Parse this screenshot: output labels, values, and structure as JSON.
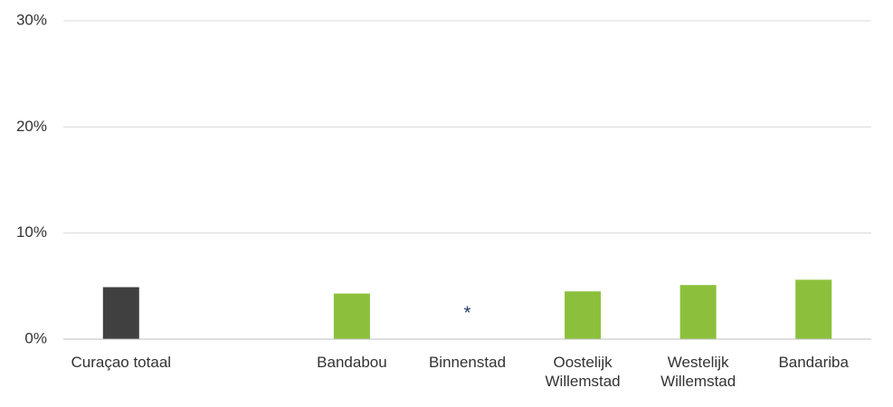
{
  "chart_data": {
    "type": "bar",
    "categories": [
      "Curaçao totaal",
      null,
      "Bandabou",
      "Binnenstad",
      "Oostelijk Willemstad",
      "Westelijk Willemstad",
      "Bandariba"
    ],
    "values": [
      4.9,
      null,
      4.3,
      null,
      4.5,
      5.1,
      5.6
    ],
    "value_labels": [
      null,
      null,
      null,
      "*",
      null,
      null,
      null
    ],
    "colors": [
      "#404040",
      null,
      "#8cc03c",
      null,
      "#8cc03c",
      "#8cc03c",
      "#8cc03c"
    ],
    "ylim": [
      0,
      30
    ],
    "yticks": [
      {
        "value": 0,
        "label": "0%"
      },
      {
        "value": 10,
        "label": "10%"
      },
      {
        "value": 20,
        "label": "20%"
      },
      {
        "value": 30,
        "label": "30%"
      }
    ],
    "grid": true
  }
}
